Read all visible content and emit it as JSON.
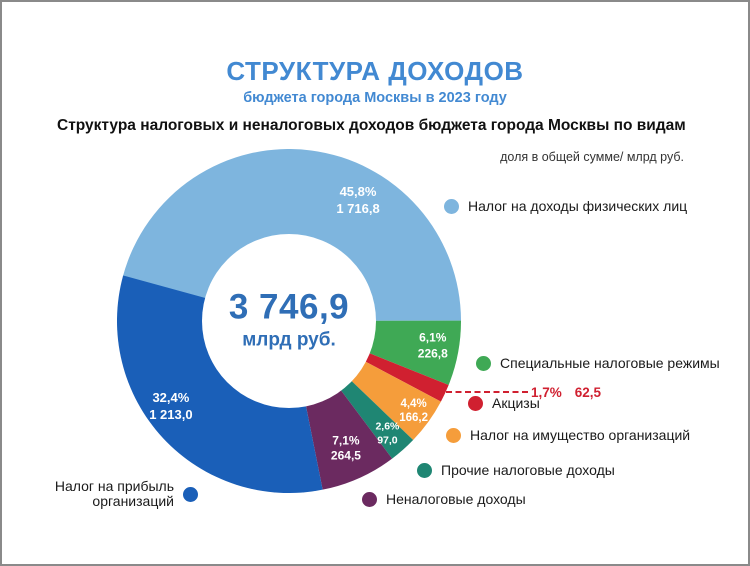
{
  "header": {
    "title": "СТРУКТУРА ДОХОДОВ",
    "subtitle": "бюджета города Москвы в 2023 году",
    "section_title": "Структура налоговых и неналоговых доходов бюджета города Москвы по видам",
    "unit_note": "доля в общей сумме/ млрд руб."
  },
  "center": {
    "total": "3 746,9",
    "unit": "млрд руб."
  },
  "chart_data": {
    "type": "pie",
    "subtype": "donut",
    "title": "Структура налоговых и неналоговых доходов бюджета города Москвы по видам",
    "total_value": 3746.9,
    "total_label": "3 746,9",
    "unit": "млрд руб.",
    "start_angle_deg": 285,
    "legend_position": "right",
    "slices": [
      {
        "label": "Налог на доходы физических лиц",
        "percent": 45.8,
        "value": 1716.8,
        "percent_label": "45,8%",
        "value_label": "1 716,8",
        "color": "#7eb5de"
      },
      {
        "label": "Специальные налоговые режимы",
        "percent": 6.1,
        "value": 226.8,
        "percent_label": "6,1%",
        "value_label": "226,8",
        "color": "#3fa955"
      },
      {
        "label": "Акцизы",
        "percent": 1.7,
        "value": 62.5,
        "percent_label": "1,7%",
        "value_label": "62,5",
        "color": "#d02030"
      },
      {
        "label": "Налог на имущество организаций",
        "percent": 4.4,
        "value": 166.2,
        "percent_label": "4,4%",
        "value_label": "166,2",
        "color": "#f59d3b"
      },
      {
        "label": "Прочие налоговые доходы",
        "percent": 2.6,
        "value": 97.0,
        "percent_label": "2,6%",
        "value_label": "97,0",
        "color": "#1f8673"
      },
      {
        "label": "Неналоговые доходы",
        "percent": 7.1,
        "value": 264.5,
        "percent_label": "7,1%",
        "value_label": "264,5",
        "color": "#6b2a60"
      },
      {
        "label": "Налог на прибыль организаций",
        "percent": 32.4,
        "value": 1213.0,
        "percent_label": "32,4%",
        "value_label": "1 213,0",
        "color": "#1a5fb8"
      }
    ]
  }
}
